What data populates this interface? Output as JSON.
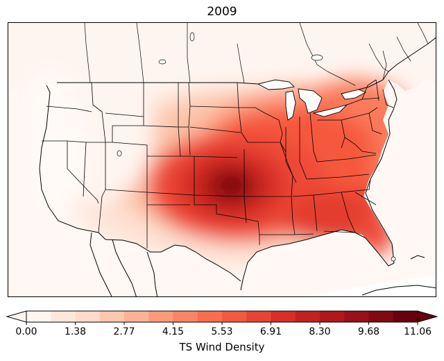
{
  "title": "2009",
  "map": {
    "variable": "TS Wind Density",
    "region": "continental United States",
    "peak_location": "Kansas / Oklahoma border",
    "colors": {
      "background": "#ffffff",
      "state_lines": "#000000",
      "water": "#ffffff"
    }
  },
  "colorbar": {
    "label": "TS Wind Density",
    "extend": "both",
    "min": 0.0,
    "max": 11.06,
    "tick_labels": [
      "0.00",
      "1.38",
      "2.77",
      "4.15",
      "5.53",
      "6.91",
      "8.30",
      "9.68",
      "11.06"
    ],
    "levels": 16,
    "colors": [
      "#fff5f0",
      "#fee8dd",
      "#fedbca",
      "#fcc7af",
      "#fcb297",
      "#fc9b7c",
      "#fb8464",
      "#f96e4f",
      "#f3593f",
      "#e84433",
      "#d72e27",
      "#c3201f",
      "#b2181a",
      "#99101a",
      "#7f0a13",
      "#67000d"
    ]
  }
}
